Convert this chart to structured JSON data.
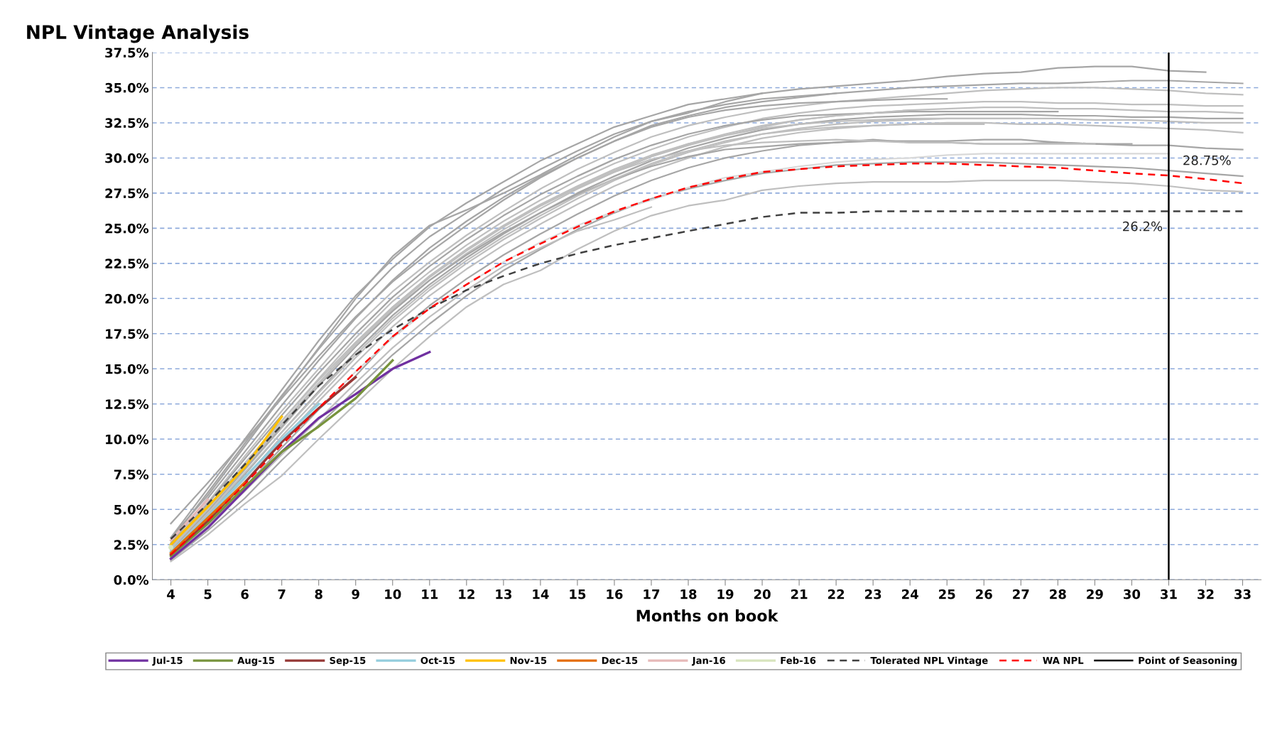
{
  "chart_data": {
    "type": "line",
    "title": "NPL Vintage Analysis",
    "xlabel": "Months on book",
    "categories": [
      "4",
      "5",
      "6",
      "7",
      "8",
      "9",
      "10",
      "11",
      "12",
      "13",
      "14",
      "15",
      "16",
      "17",
      "18",
      "19",
      "20",
      "21",
      "22",
      "23",
      "24",
      "25",
      "26",
      "27",
      "28",
      "29",
      "30",
      "31",
      "32",
      "33"
    ],
    "ylim": [
      0,
      37.5
    ],
    "yticks": [
      {
        "value": 0,
        "label": "0.0%"
      },
      {
        "value": 2.5,
        "label": "2.5%"
      },
      {
        "value": 5,
        "label": "5.0%"
      },
      {
        "value": 7.5,
        "label": "7.5%"
      },
      {
        "value": 10,
        "label": "10.0%"
      },
      {
        "value": 12.5,
        "label": "12.5%"
      },
      {
        "value": 15,
        "label": "15.0%"
      },
      {
        "value": 17.5,
        "label": "17.5%"
      },
      {
        "value": 20,
        "label": "20.0%"
      },
      {
        "value": 22.5,
        "label": "22.5%"
      },
      {
        "value": 25,
        "label": "25.0%"
      },
      {
        "value": 27.5,
        "label": "27.5%"
      },
      {
        "value": 30,
        "label": "30.0%"
      },
      {
        "value": 32.5,
        "label": "32.5%"
      },
      {
        "value": 35,
        "label": "35.0%"
      },
      {
        "value": 37.5,
        "label": "37.5%"
      }
    ],
    "grid": "y",
    "legend": "bottom",
    "line_style": "solid",
    "marker": "none",
    "series": [
      {
        "color": "#a6a6a6",
        "values": [
          4.0,
          6.9,
          9.9,
          12.9,
          15.9,
          18.7,
          21.2,
          23.3,
          25.2,
          27.0,
          28.6,
          30.0,
          31.2,
          32.3,
          33.0,
          33.6,
          34.0,
          34.3,
          34.6,
          34.8,
          35.0,
          35.1,
          35.2,
          35.3,
          35.3,
          35.4,
          35.5,
          35.5,
          35.4,
          35.3
        ]
      },
      {
        "color": "#a6a6a6",
        "values": [
          3.0,
          6.0,
          9.5,
          13.0,
          16.5,
          20.0,
          23.0,
          25.2,
          26.3,
          27.5,
          28.8,
          30.2,
          31.5,
          32.6,
          33.2,
          34.0,
          34.6,
          34.9,
          35.1,
          35.3,
          35.5,
          35.8,
          36.0,
          36.1,
          36.4,
          36.5,
          36.5,
          36.2,
          36.1,
          null
        ]
      },
      {
        "color": "#bfbfbf",
        "values": [
          2.5,
          5.5,
          8.8,
          12.0,
          15.0,
          18.0,
          20.5,
          22.6,
          24.5,
          26.2,
          27.8,
          29.2,
          30.4,
          31.5,
          32.3,
          32.9,
          33.4,
          33.7,
          34.0,
          34.2,
          34.4,
          34.6,
          34.8,
          34.9,
          35.0,
          35.0,
          34.9,
          34.8,
          34.6,
          34.5
        ]
      },
      {
        "color": "#bfbfbf",
        "values": [
          2.2,
          5.0,
          8.2,
          11.3,
          14.3,
          17.2,
          19.8,
          21.9,
          23.8,
          25.5,
          27.0,
          28.4,
          29.6,
          30.6,
          31.5,
          32.2,
          32.8,
          33.2,
          33.5,
          33.7,
          33.8,
          33.9,
          34.0,
          34.0,
          33.9,
          33.9,
          33.8,
          33.8,
          33.7,
          33.7
        ]
      },
      {
        "color": "#bfbfbf",
        "values": [
          2.0,
          4.8,
          7.8,
          10.8,
          13.8,
          16.6,
          19.2,
          21.3,
          23.2,
          24.9,
          26.4,
          27.8,
          29.0,
          30.1,
          31.0,
          31.7,
          32.3,
          32.7,
          33.0,
          33.2,
          33.4,
          33.5,
          33.6,
          33.6,
          33.5,
          33.5,
          33.4,
          33.3,
          33.3,
          33.2
        ]
      },
      {
        "color": "#a6a6a6",
        "values": [
          1.9,
          4.6,
          7.5,
          10.5,
          13.4,
          16.2,
          18.8,
          21.0,
          22.9,
          24.6,
          26.1,
          27.5,
          28.7,
          29.8,
          30.7,
          31.4,
          32.0,
          32.4,
          32.7,
          32.9,
          33.0,
          33.1,
          33.1,
          33.1,
          33.0,
          33.0,
          32.9,
          32.9,
          32.8,
          32.8
        ]
      },
      {
        "color": "#bfbfbf",
        "values": [
          1.8,
          4.4,
          7.2,
          10.2,
          13.0,
          15.8,
          18.4,
          20.6,
          22.5,
          24.2,
          25.7,
          27.1,
          28.4,
          29.5,
          30.4,
          31.1,
          31.7,
          32.1,
          32.4,
          32.6,
          32.7,
          32.8,
          32.8,
          32.8,
          32.8,
          32.7,
          32.7,
          32.6,
          32.5,
          32.5
        ]
      },
      {
        "color": "#bfbfbf",
        "values": [
          1.7,
          4.2,
          7.0,
          9.9,
          12.7,
          15.4,
          18.0,
          20.2,
          22.1,
          23.8,
          25.3,
          26.7,
          28.0,
          29.1,
          30.0,
          30.8,
          31.4,
          31.8,
          32.1,
          32.3,
          32.4,
          32.5,
          32.5,
          32.4,
          32.4,
          32.3,
          32.2,
          32.1,
          32.0,
          31.8
        ]
      },
      {
        "color": "#a6a6a6",
        "values": [
          1.6,
          4.0,
          6.6,
          9.4,
          12.1,
          14.5,
          17.3,
          19.5,
          21.4,
          23.1,
          24.6,
          26.0,
          27.3,
          28.4,
          29.3,
          30.0,
          30.5,
          30.9,
          31.1,
          31.3,
          31.1,
          31.1,
          31.0,
          31.0,
          31.1,
          31.0,
          30.9,
          30.9,
          30.7,
          30.6
        ]
      },
      {
        "color": "#a6a6a6",
        "values": [
          1.4,
          3.5,
          5.8,
          8.5,
          11.0,
          13.5,
          16.0,
          18.2,
          20.2,
          22.0,
          23.5,
          24.9,
          26.1,
          27.1,
          27.8,
          28.4,
          28.9,
          29.2,
          29.5,
          29.6,
          29.7,
          29.7,
          29.7,
          29.6,
          29.5,
          29.4,
          29.3,
          29.1,
          28.9,
          28.7
        ]
      },
      {
        "color": "#bfbfbf",
        "values": [
          1.3,
          3.2,
          5.4,
          7.4,
          10.0,
          12.5,
          15.0,
          17.3,
          19.4,
          21.0,
          22.0,
          23.5,
          24.8,
          25.9,
          26.6,
          27.0,
          27.7,
          28.0,
          28.2,
          28.3,
          28.3,
          28.3,
          28.4,
          28.4,
          28.4,
          28.3,
          28.2,
          28.0,
          27.7,
          27.6
        ]
      },
      {
        "color": "#d9d9d9",
        "values": [
          2.0,
          4.5,
          7.0,
          9.7,
          12.2,
          14.8,
          17.2,
          19.3,
          21.0,
          22.6,
          24.0,
          25.2,
          26.2,
          27.0,
          27.9,
          28.6,
          29.0,
          29.4,
          29.7,
          29.9,
          30.0,
          30.2,
          30.3,
          30.3,
          30.3,
          30.3,
          30.3,
          30.3,
          null,
          null
        ]
      },
      {
        "color": "#a6a6a6",
        "values": [
          2.1,
          4.9,
          7.9,
          10.9,
          13.8,
          16.6,
          19.1,
          21.3,
          23.1,
          24.7,
          26.1,
          27.4,
          28.5,
          29.4,
          30.1,
          30.6,
          30.8,
          31.0,
          31.1,
          31.2,
          31.2,
          31.2,
          31.3,
          31.3,
          31.1,
          31.0,
          31.0,
          null,
          null,
          null
        ]
      },
      {
        "color": "#bfbfbf",
        "values": [
          2.3,
          5.2,
          8.3,
          11.3,
          14.2,
          16.9,
          19.4,
          21.6,
          23.5,
          25.1,
          26.6,
          27.9,
          29.0,
          29.9,
          30.5,
          30.9,
          31.1,
          31.2,
          31.3,
          31.2,
          31.1,
          31.1,
          31.0,
          31.0,
          31.0,
          31.0,
          null,
          null,
          null,
          null
        ]
      },
      {
        "color": "#a6a6a6",
        "values": [
          2.4,
          5.4,
          8.6,
          11.7,
          14.7,
          17.5,
          20.1,
          22.3,
          24.2,
          25.9,
          27.4,
          28.7,
          29.9,
          30.9,
          31.7,
          32.3,
          32.7,
          33.0,
          33.1,
          33.2,
          33.3,
          33.3,
          33.3,
          33.3,
          33.3,
          null,
          null,
          null,
          null,
          null
        ]
      },
      {
        "color": "#bfbfbf",
        "values": [
          2.2,
          5.1,
          8.1,
          11.1,
          14.0,
          16.8,
          19.4,
          21.6,
          23.5,
          25.2,
          26.7,
          28.0,
          29.2,
          30.2,
          31.0,
          31.6,
          32.1,
          32.4,
          32.6,
          32.7,
          32.8,
          32.8,
          32.8,
          32.8,
          null,
          null,
          null,
          null,
          null,
          null
        ]
      },
      {
        "color": "#bfbfbf",
        "values": [
          2.0,
          4.7,
          7.6,
          10.5,
          13.3,
          16.0,
          18.6,
          20.8,
          22.7,
          24.4,
          25.9,
          27.3,
          28.5,
          29.6,
          30.5,
          31.2,
          31.7,
          32.0,
          32.2,
          32.3,
          32.4,
          32.4,
          32.4,
          null,
          null,
          null,
          null,
          null,
          null,
          null
        ]
      },
      {
        "color": "#a6a6a6",
        "values": [
          2.6,
          5.8,
          9.1,
          12.4,
          15.6,
          18.6,
          21.3,
          23.6,
          25.5,
          27.2,
          28.7,
          30.0,
          31.2,
          32.2,
          32.9,
          33.4,
          33.7,
          33.9,
          34.0,
          34.1,
          34.2,
          34.2,
          null,
          null,
          null,
          null,
          null,
          null,
          null,
          null
        ]
      },
      {
        "color": "#bfbfbf",
        "values": [
          2.2,
          5.0,
          8.0,
          11.0,
          13.9,
          16.7,
          19.3,
          21.5,
          23.4,
          25.1,
          26.6,
          27.9,
          29.1,
          30.1,
          30.9,
          31.6,
          32.2,
          32.7,
          33.0,
          33.2,
          33.4,
          null,
          null,
          null,
          null,
          null,
          null,
          null,
          null,
          null
        ]
      },
      {
        "color": "#a6a6a6",
        "values": [
          2.8,
          6.2,
          9.7,
          13.1,
          16.4,
          19.5,
          22.2,
          24.4,
          26.1,
          27.8,
          29.2,
          30.5,
          31.7,
          32.6,
          33.3,
          33.8,
          34.2,
          34.4,
          34.6,
          null,
          null,
          null,
          null,
          null,
          null,
          null,
          null,
          null,
          null,
          null
        ]
      },
      {
        "color": "#a6a6a6",
        "values": [
          3.0,
          6.5,
          10.0,
          13.5,
          17.0,
          20.2,
          22.8,
          25.1,
          26.8,
          28.3,
          29.8,
          31.0,
          32.2,
          33.0,
          33.8,
          34.2,
          34.6,
          null,
          null,
          null,
          null,
          null,
          null,
          null,
          null,
          null,
          null,
          null,
          null,
          null
        ]
      },
      {
        "color": "#bfbfbf",
        "values": [
          1.7,
          3.9,
          6.3,
          8.9,
          11.4,
          14.0,
          16.5,
          18.7,
          20.6,
          22.3,
          23.6,
          24.8,
          25.6,
          26.5,
          null,
          null,
          null,
          null,
          null,
          null,
          null,
          null,
          null,
          null,
          null,
          null,
          null,
          null,
          null,
          null
        ]
      },
      {
        "name": "Jul-15",
        "color": "#7030a0",
        "values": [
          1.5,
          3.7,
          6.4,
          9.1,
          11.5,
          13.2,
          15.0,
          16.2,
          null,
          null,
          null,
          null,
          null,
          null,
          null,
          null,
          null,
          null,
          null,
          null,
          null,
          null,
          null,
          null,
          null,
          null,
          null,
          null,
          null,
          null
        ]
      },
      {
        "name": "Aug-15",
        "color": "#77933c",
        "values": [
          1.7,
          4.0,
          6.6,
          9.1,
          10.9,
          12.9,
          15.6,
          null,
          null,
          null,
          null,
          null,
          null,
          null,
          null,
          null,
          null,
          null,
          null,
          null,
          null,
          null,
          null,
          null,
          null,
          null,
          null,
          null,
          null,
          null
        ]
      },
      {
        "name": "Sep-15",
        "color": "#953735",
        "values": [
          1.8,
          4.2,
          6.9,
          9.8,
          12.2,
          14.4,
          null,
          null,
          null,
          null,
          null,
          null,
          null,
          null,
          null,
          null,
          null,
          null,
          null,
          null,
          null,
          null,
          null,
          null,
          null,
          null,
          null,
          null,
          null,
          null
        ]
      },
      {
        "name": "Oct-15",
        "color": "#93cddd",
        "values": [
          2.0,
          4.5,
          7.3,
          10.0,
          12.5,
          null,
          null,
          null,
          null,
          null,
          null,
          null,
          null,
          null,
          null,
          null,
          null,
          null,
          null,
          null,
          null,
          null,
          null,
          null,
          null,
          null,
          null,
          null,
          null,
          null
        ]
      },
      {
        "name": "Nov-15",
        "color": "#ffc000",
        "values": [
          2.5,
          5.2,
          8.0,
          11.6,
          null,
          null,
          null,
          null,
          null,
          null,
          null,
          null,
          null,
          null,
          null,
          null,
          null,
          null,
          null,
          null,
          null,
          null,
          null,
          null,
          null,
          null,
          null,
          null,
          null,
          null
        ]
      },
      {
        "name": "Dec-15",
        "color": "#e46c0a",
        "values": [
          1.9,
          4.4,
          6.9,
          null,
          null,
          null,
          null,
          null,
          null,
          null,
          null,
          null,
          null,
          null,
          null,
          null,
          null,
          null,
          null,
          null,
          null,
          null,
          null,
          null,
          null,
          null,
          null,
          null,
          null,
          null
        ]
      },
      {
        "name": "Jan-16",
        "color": "#e6b9b8",
        "values": [
          2.8,
          5.7,
          null,
          null,
          null,
          null,
          null,
          null,
          null,
          null,
          null,
          null,
          null,
          null,
          null,
          null,
          null,
          null,
          null,
          null,
          null,
          null,
          null,
          null,
          null,
          null,
          null,
          null,
          null,
          null
        ]
      },
      {
        "name": "Feb-16",
        "color": "#d7e4bd",
        "values": [
          2.3,
          null,
          null,
          null,
          null,
          null,
          null,
          null,
          null,
          null,
          null,
          null,
          null,
          null,
          null,
          null,
          null,
          null,
          null,
          null,
          null,
          null,
          null,
          null,
          null,
          null,
          null,
          null,
          null,
          null
        ]
      },
      {
        "name": "Tolerated NPL Vintage",
        "color": "#404040",
        "line_style": "dashed",
        "values": [
          2.9,
          5.4,
          8.2,
          11.0,
          13.8,
          16.0,
          17.8,
          19.3,
          20.6,
          21.6,
          22.5,
          23.2,
          23.8,
          24.3,
          24.8,
          25.3,
          25.8,
          26.1,
          26.1,
          26.2,
          26.2,
          26.2,
          26.2,
          26.2,
          26.2,
          26.2,
          26.2,
          26.2,
          26.2,
          26.2
        ]
      },
      {
        "name": "WA NPL",
        "color": "#ff0000",
        "line_style": "dashed",
        "values": [
          1.8,
          4.2,
          6.8,
          9.6,
          12.2,
          14.8,
          17.3,
          19.3,
          21.0,
          22.6,
          23.9,
          25.1,
          26.2,
          27.1,
          27.9,
          28.5,
          29.0,
          29.2,
          29.4,
          29.5,
          29.6,
          29.6,
          29.5,
          29.4,
          29.3,
          29.1,
          28.9,
          28.75,
          28.5,
          28.2
        ]
      }
    ],
    "ref_lines": [
      {
        "axis": "x",
        "value": "31",
        "label": "Point of Seasoning",
        "color": "#000000",
        "line_style": "solid"
      }
    ],
    "annotations": [
      {
        "text": "28.75%",
        "x": "31",
        "y": 28.75
      },
      {
        "text": "26.2%",
        "x": "31",
        "y": 26.2
      }
    ]
  }
}
